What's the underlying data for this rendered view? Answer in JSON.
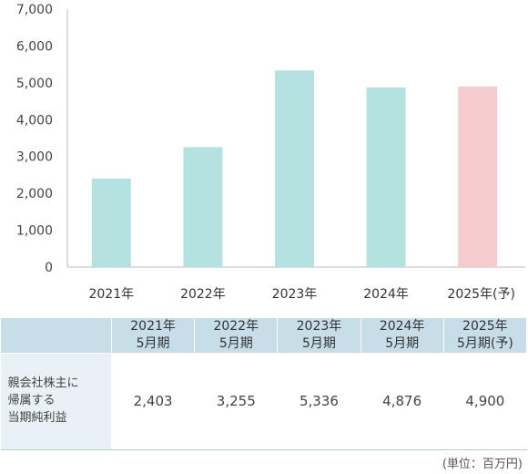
{
  "chart_data": {
    "type": "bar",
    "categories": [
      "2021年",
      "2022年",
      "2023年",
      "2024年",
      "2025年(予)"
    ],
    "values": [
      2403,
      3255,
      5336,
      4876,
      4900
    ],
    "ylim": [
      0,
      7000
    ],
    "yticks": [
      "0",
      "1,000",
      "2,000",
      "3,000",
      "4,000",
      "5,000",
      "6,000",
      "7,000"
    ],
    "colors": [
      "#b3e2e0",
      "#b3e2e0",
      "#b3e2e0",
      "#b3e2e0",
      "#f5cbcd"
    ],
    "grid": false
  },
  "table": {
    "headers": [
      {
        "line1": "2021年",
        "line2": "5月期"
      },
      {
        "line1": "2022年",
        "line2": "5月期"
      },
      {
        "line1": "2023年",
        "line2": "5月期"
      },
      {
        "line1": "2024年",
        "line2": "5月期"
      },
      {
        "line1": "2025年",
        "line2": "5月期(予)"
      }
    ],
    "row_label": [
      "親会社株主に",
      "帰属する",
      "当期純利益"
    ],
    "values": [
      "2,403",
      "3,255",
      "5,336",
      "4,876",
      "4,900"
    ]
  },
  "unit_note": "(単位：百万円)"
}
